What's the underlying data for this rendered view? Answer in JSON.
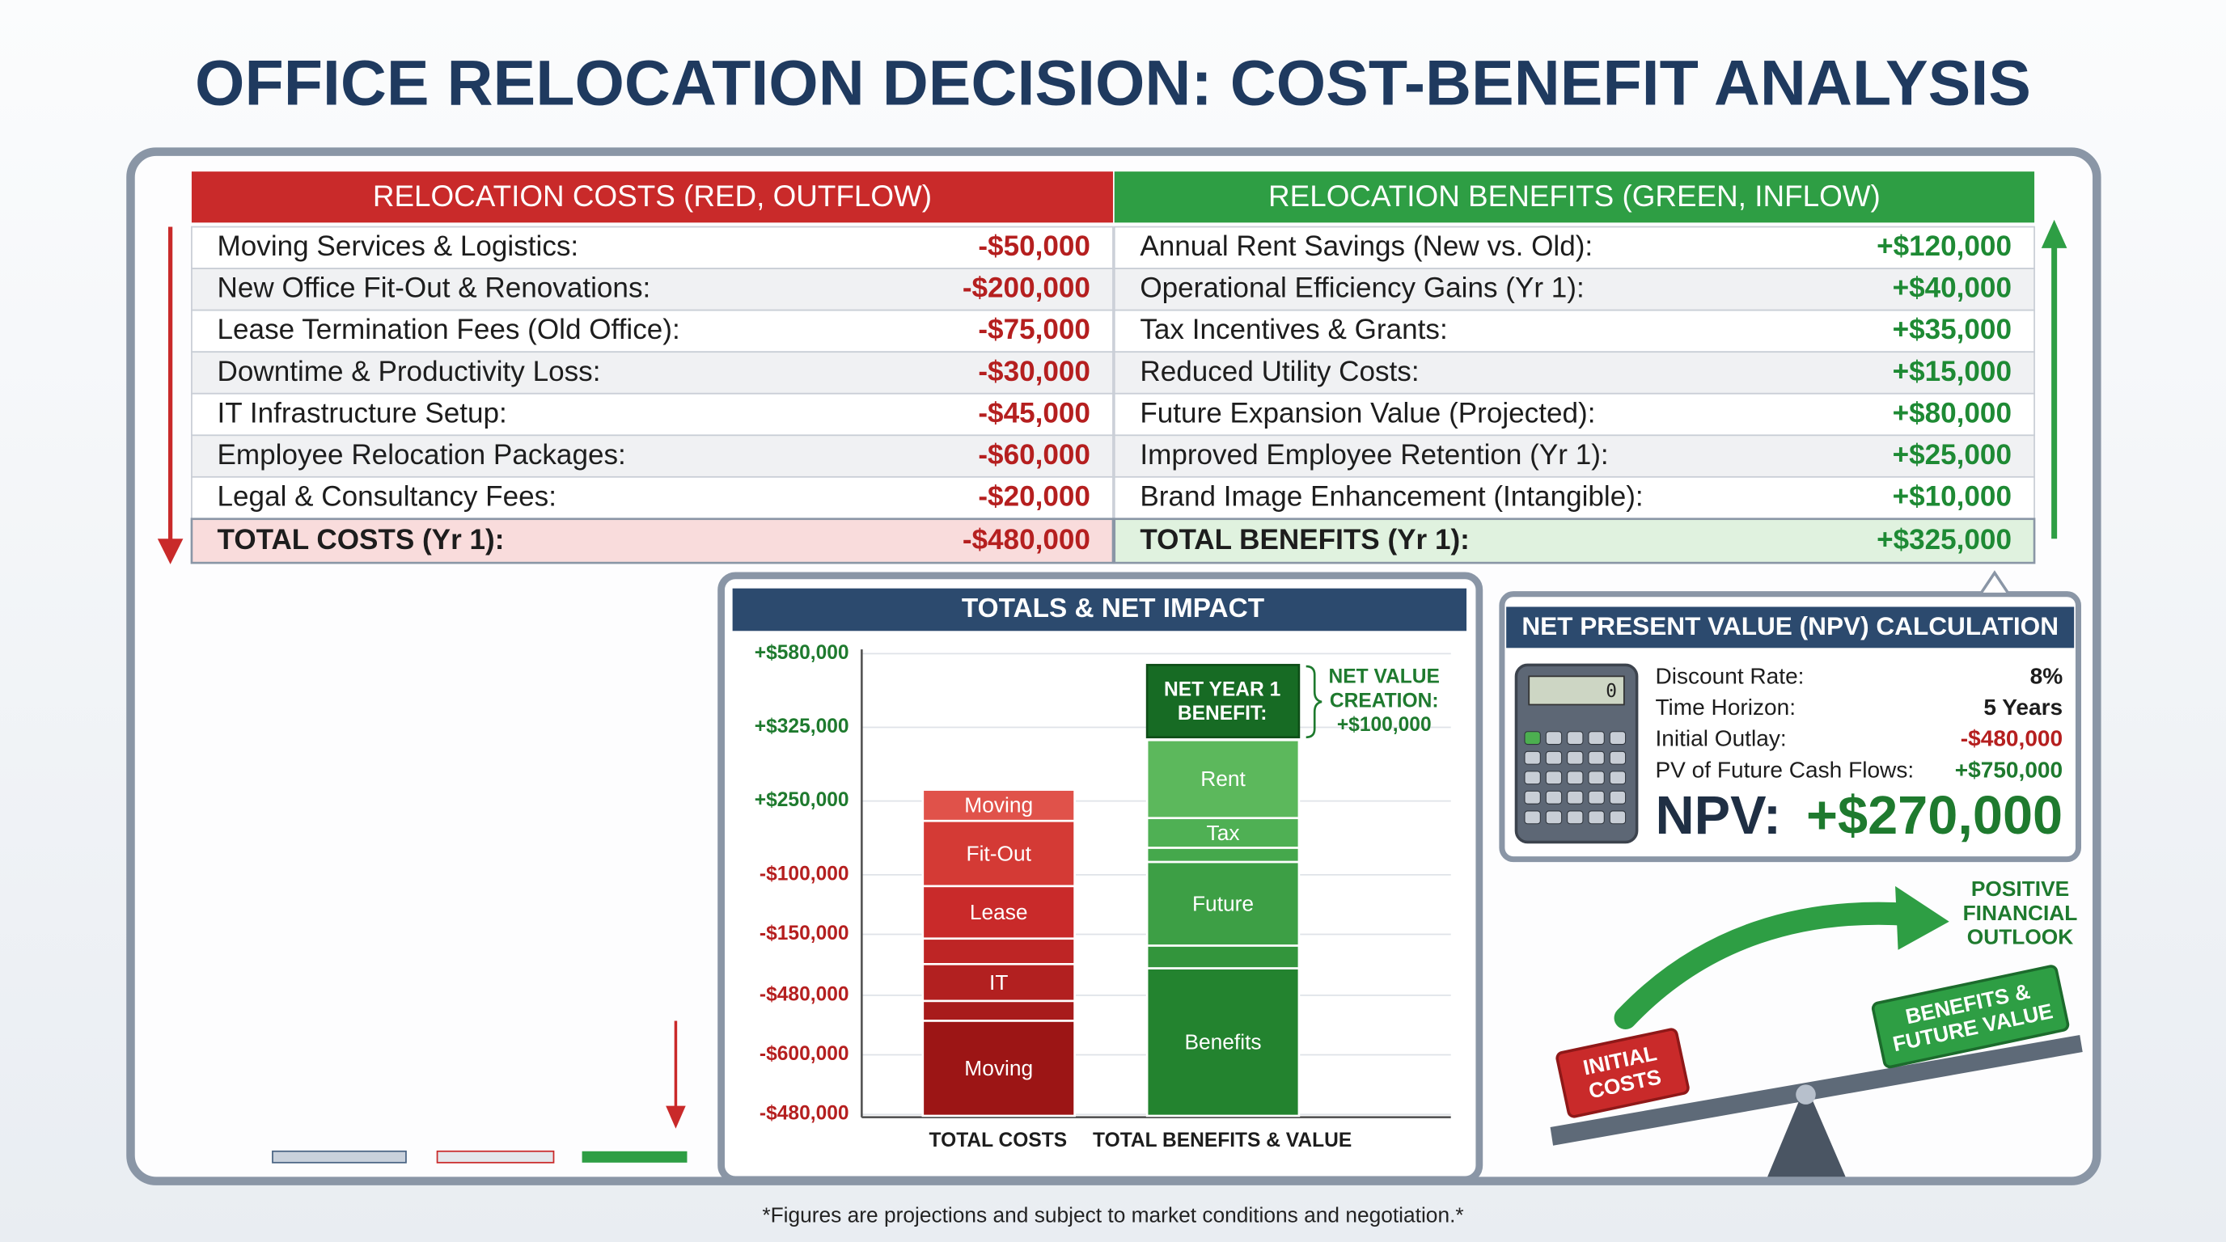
{
  "title": "OFFICE RELOCATION DECISION: COST-BENEFIT ANALYSIS",
  "costs": {
    "header": "RELOCATION COSTS (RED, OUTFLOW)",
    "rows": [
      [
        "Moving Services & Logistics:",
        "-$50,000"
      ],
      [
        "New Office Fit-Out & Renovations:",
        "-$200,000"
      ],
      [
        "Lease Termination Fees (Old Office):",
        "-$75,000"
      ],
      [
        "Downtime & Productivity Loss:",
        "-$30,000"
      ],
      [
        "IT Infrastructure Setup:",
        "-$45,000"
      ],
      [
        "Employee Relocation Packages:",
        "-$60,000"
      ],
      [
        "Legal & Consultancy Fees:",
        "-$20,000"
      ]
    ],
    "total": [
      "TOTAL COSTS (Yr 1):",
      "-$480,000"
    ]
  },
  "benefits": {
    "header": "RELOCATION BENEFITS (GREEN, INFLOW)",
    "rows": [
      [
        "Annual Rent Savings (New vs. Old):",
        "+$120,000"
      ],
      [
        "Operational Efficiency Gains (Yr 1):",
        "+$40,000"
      ],
      [
        "Tax Incentives & Grants:",
        "+$35,000"
      ],
      [
        "Reduced Utility Costs:",
        "+$15,000"
      ],
      [
        "Future Expansion Value (Projected):",
        "+$80,000"
      ],
      [
        "Improved Employee Retention (Yr 1):",
        "+$25,000"
      ],
      [
        "Brand Image Enhancement (Intangible):",
        "+$10,000"
      ]
    ],
    "total": [
      "TOTAL BENEFITS (Yr 1):",
      "+$325,000"
    ]
  },
  "totals_chart": {
    "title": "TOTALS & NET IMPACT",
    "y_labels": [
      "+$580,000",
      "+$325,000",
      "+$250,000",
      "-$100,000",
      "-$150,000",
      "-$480,000",
      "-$600,000",
      "-$480,000"
    ],
    "cost_segments": [
      "Moving",
      "Fit-Out",
      "Lease",
      "IT",
      "Moving"
    ],
    "benefit_segments": [
      "Rent",
      "Tax",
      "Future",
      "Benefits"
    ],
    "net_box": [
      "NET YEAR 1",
      "BENEFIT:"
    ],
    "net_note": [
      "NET VALUE",
      "CREATION:",
      "+$100,000"
    ],
    "x_labels": [
      "TOTAL COSTS",
      "TOTAL BENEFITS & VALUE"
    ]
  },
  "npv": {
    "title": "NET PRESENT VALUE (NPV) CALCULATION",
    "calculator_display": "0",
    "rows": [
      [
        "Discount Rate:",
        "8%"
      ],
      [
        "Time Horizon:",
        "5 Years"
      ],
      [
        "Initial Outlay:",
        "-$480,000"
      ],
      [
        "PV of Future Cash Flows:",
        "+$750,000"
      ]
    ],
    "result": [
      "NPV:",
      "+$270,000"
    ]
  },
  "outlook": {
    "arrow_label": [
      "POSITIVE",
      "FINANCIAL",
      "OUTLOOK"
    ],
    "left_block": [
      "INITIAL",
      "COSTS"
    ],
    "right_block": [
      "BENEFITS &",
      "FUTURE VALUE"
    ]
  },
  "footnote": "*Figures are projections and subject to market conditions and negotiation.*"
}
